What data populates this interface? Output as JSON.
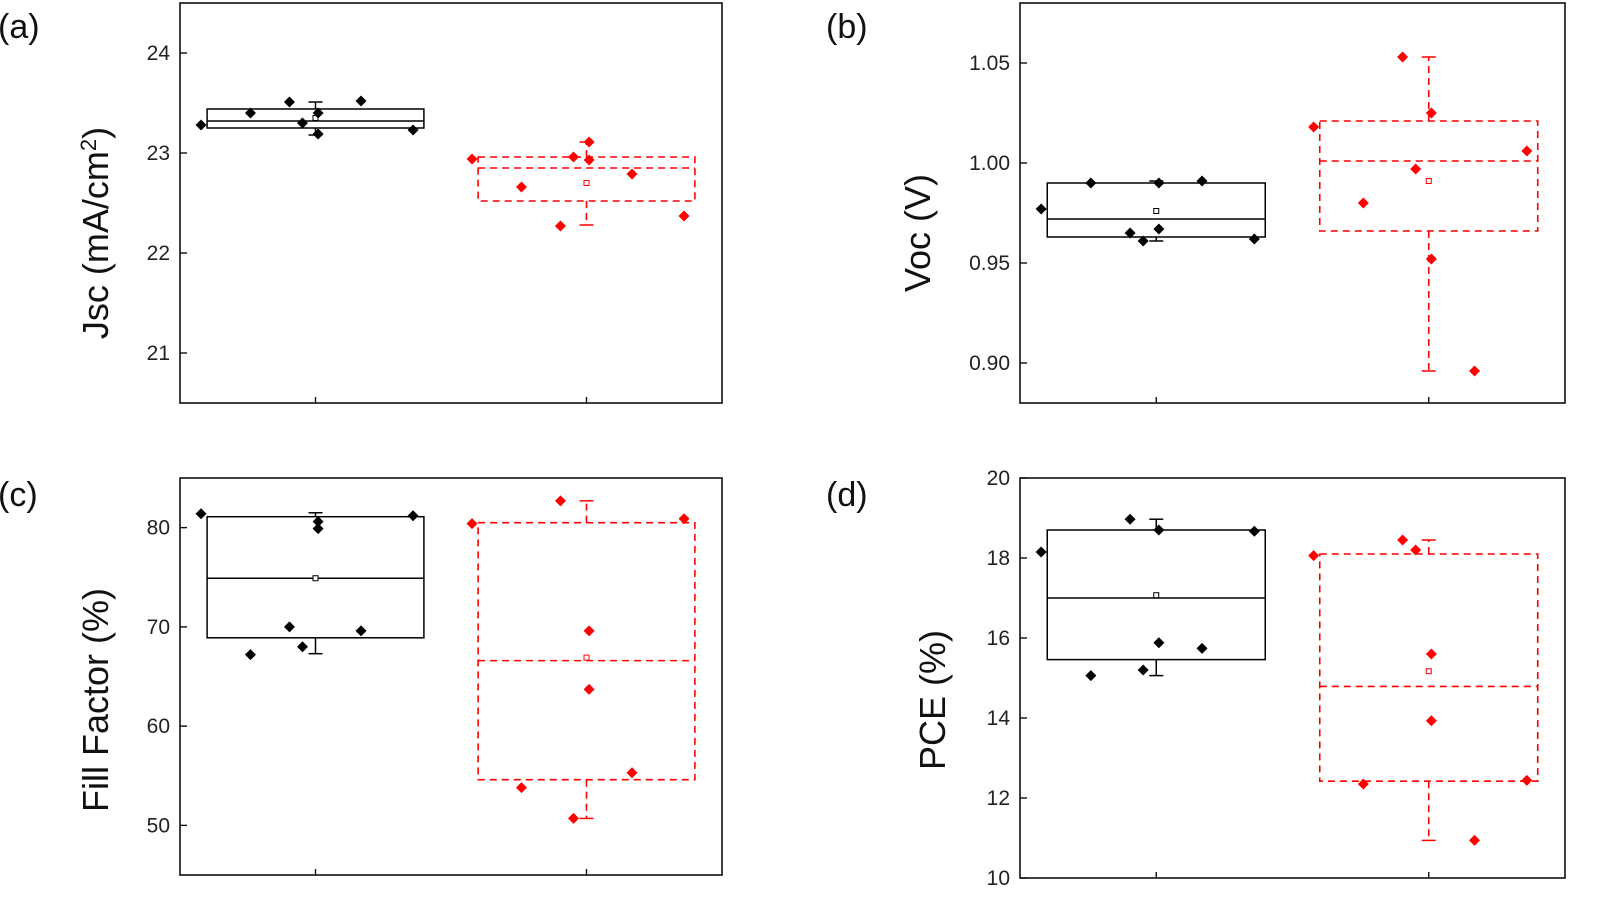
{
  "chart_data": [
    {
      "type": "box",
      "panel_label": "(a)",
      "ylabel": "Jsc (mA/cm",
      "ylabel_sup": "2",
      "ylabel_end": ")",
      "ylim": [
        20.5,
        24.5
      ],
      "yticks": [
        21,
        22,
        23,
        24
      ],
      "ytick_labels": [
        "21",
        "22",
        "23",
        "24"
      ],
      "categories": [
        "",
        ""
      ],
      "series": [
        {
          "color": "#000000",
          "dashed": false,
          "box": {
            "q1": 23.25,
            "median": 23.32,
            "q3": 23.44,
            "whisker_low": 23.18,
            "whisker_high": 23.51,
            "mean": 23.35
          },
          "points": [
            23.28,
            23.4,
            23.51,
            23.4,
            23.19,
            23.52,
            23.23,
            23.3
          ]
        },
        {
          "color": "#ff0000",
          "dashed": true,
          "box": {
            "q1": 22.52,
            "median": 22.85,
            "q3": 22.96,
            "whisker_low": 22.28,
            "whisker_high": 23.11,
            "mean": 22.7
          },
          "points": [
            22.94,
            22.66,
            22.27,
            23.11,
            22.93,
            22.79,
            22.37,
            22.96
          ]
        }
      ]
    },
    {
      "type": "box",
      "panel_label": "(b)",
      "ylabel": "Voc (V)",
      "ylim": [
        0.88,
        1.08
      ],
      "yticks": [
        0.9,
        0.95,
        1.0,
        1.05
      ],
      "ytick_labels": [
        "0.90",
        "0.95",
        "1.00",
        "1.05"
      ],
      "categories": [
        "",
        ""
      ],
      "series": [
        {
          "color": "#000000",
          "dashed": false,
          "box": {
            "q1": 0.963,
            "median": 0.972,
            "q3": 0.99,
            "whisker_low": 0.961,
            "whisker_high": 0.991,
            "mean": 0.976
          },
          "points": [
            0.977,
            0.99,
            0.965,
            0.99,
            0.967,
            0.991,
            0.962,
            0.961
          ]
        },
        {
          "color": "#ff0000",
          "dashed": true,
          "box": {
            "q1": 0.966,
            "median": 1.001,
            "q3": 1.021,
            "whisker_low": 0.896,
            "whisker_high": 1.053,
            "mean": 0.991
          },
          "points": [
            1.018,
            0.98,
            1.053,
            1.025,
            0.952,
            0.896,
            1.006,
            0.997
          ]
        }
      ]
    },
    {
      "type": "box",
      "panel_label": "(c)",
      "ylabel": "Fill Factor (%)",
      "ylim": [
        45,
        85
      ],
      "yticks": [
        50,
        60,
        70,
        80
      ],
      "ytick_labels": [
        "50",
        "60",
        "70",
        "80"
      ],
      "categories": [
        "",
        ""
      ],
      "series": [
        {
          "color": "#000000",
          "dashed": false,
          "box": {
            "q1": 68.9,
            "median": 74.9,
            "q3": 81.1,
            "whisker_low": 67.3,
            "whisker_high": 81.5,
            "mean": 74.9
          },
          "points": [
            81.4,
            67.2,
            70.0,
            80.6,
            79.9,
            69.6,
            81.2,
            68.0
          ]
        },
        {
          "color": "#ff0000",
          "dashed": true,
          "box": {
            "q1": 54.6,
            "median": 66.6,
            "q3": 80.5,
            "whisker_low": 50.7,
            "whisker_high": 82.7,
            "mean": 66.9
          },
          "points": [
            80.4,
            53.8,
            82.7,
            69.6,
            63.7,
            55.3,
            80.9,
            50.7
          ]
        }
      ]
    },
    {
      "type": "box",
      "panel_label": "(d)",
      "ylabel": "PCE (%)",
      "ylim": [
        10,
        20
      ],
      "yticks": [
        10,
        12,
        14,
        16,
        18,
        20
      ],
      "ytick_labels": [
        "10",
        "12",
        "14",
        "16",
        "18",
        "20"
      ],
      "categories": [
        "",
        ""
      ],
      "series": [
        {
          "color": "#000000",
          "dashed": false,
          "box": {
            "q1": 15.46,
            "median": 17.0,
            "q3": 18.7,
            "whisker_low": 15.06,
            "whisker_high": 18.97,
            "mean": 17.07
          },
          "points": [
            18.15,
            15.06,
            18.97,
            15.88,
            18.7,
            15.74,
            18.67,
            15.2
          ]
        },
        {
          "color": "#ff0000",
          "dashed": true,
          "box": {
            "q1": 12.42,
            "median": 14.79,
            "q3": 18.1,
            "whisker_low": 10.94,
            "whisker_high": 18.45,
            "mean": 15.17
          },
          "points": [
            18.06,
            12.35,
            18.45,
            15.6,
            13.93,
            10.94,
            12.44,
            18.2
          ]
        }
      ]
    }
  ]
}
